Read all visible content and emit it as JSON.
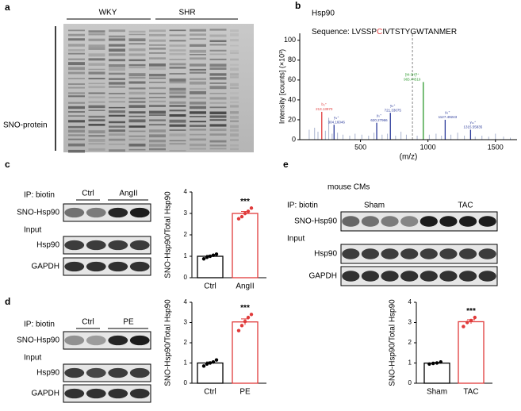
{
  "panel_a": {
    "letter": "a",
    "groups": [
      "WKY",
      "SHR"
    ],
    "row_label": "SNO-protein"
  },
  "panel_b": {
    "letter": "b",
    "sequence_prefix": "Sequence: LVSSP",
    "modified_residue": "C",
    "sequence_suffix": "IVTSTYGWTANMER"
  },
  "panel_c": {
    "letter": "c",
    "ip": "IP: biotin",
    "groups": [
      "Ctrl",
      "AngII"
    ],
    "ip_row": "SNO-Hsp90",
    "input": "Input",
    "input_rows": [
      "Hsp90",
      "GAPDH"
    ]
  },
  "panel_d": {
    "letter": "d",
    "ip": "IP: biotin",
    "groups": [
      "Ctrl",
      "PE"
    ],
    "ip_row": "SNO-Hsp90",
    "input": "Input",
    "input_rows": [
      "Hsp90",
      "GAPDH"
    ]
  },
  "panel_e": {
    "letter": "e",
    "title": "mouse CMs",
    "ip": "IP: biotin",
    "groups": [
      "Sham",
      "TAC"
    ],
    "ip_row": "SNO-Hsp90",
    "input": "Input",
    "input_rows": [
      "Hsp90",
      "GAPDH"
    ]
  },
  "chart_data": [
    {
      "type": "spectrum",
      "title": "Hsp90",
      "ylabel": "Intensity [counts] (×10³)",
      "xlabel": "(m/z)",
      "xlim": [
        50,
        1660
      ],
      "ylim": [
        0,
        107
      ],
      "xticks": [
        500,
        1000,
        1500
      ],
      "yticks": [
        0,
        20,
        40,
        60,
        80,
        100
      ],
      "peaks": [
        {
          "label": "b₃⁺",
          "mz": 213.1397,
          "mz_label": "213.13970",
          "intensity": 28,
          "color": "#e03a3a"
        },
        {
          "label": "y₃⁺",
          "mz": 304.16046,
          "mz_label": "304.16046",
          "intensity": 15,
          "color": "#2a3a9a"
        },
        {
          "label": "y₅⁺",
          "mz": 620.27966,
          "mz_label": "620.27966",
          "intensity": 17,
          "color": "#2a3a9a"
        },
        {
          "label": "y₆⁺",
          "mz": 721.33075,
          "mz_label": "721.33075",
          "intensity": 27,
          "color": "#2a3a9a"
        },
        {
          "label": "[M-3H]³⁺",
          "mz": 965.44519,
          "mz_label": "965.44519",
          "intensity": 58,
          "color": "#2e9a2e"
        },
        {
          "label": "y₉⁺",
          "mz": 1127.49243,
          "mz_label": "1127.49243",
          "intensity": 20,
          "color": "#2a3a9a"
        },
        {
          "label": "y₁₁⁺",
          "mz": 1315.55835,
          "mz_label": "1315.55835",
          "intensity": 10,
          "color": "#2a3a9a"
        }
      ],
      "precursor_line": {
        "mz": 885,
        "intensity": 107,
        "color": "#888888"
      },
      "background_peaks": {
        "color": "#a9b3cf",
        "mz": [
          120,
          160,
          185,
          240,
          265,
          290,
          330,
          370,
          420,
          460,
          510,
          560,
          600,
          660,
          700,
          760,
          800,
          840,
          920,
          1010,
          1060,
          1100,
          1170,
          1220,
          1270,
          1350,
          1400,
          1450,
          1500,
          1560,
          1610
        ],
        "intensity": [
          10,
          12,
          8,
          9,
          22,
          6,
          7,
          5,
          4,
          6,
          5,
          4,
          7,
          5,
          6,
          4,
          8,
          5,
          4,
          5,
          6,
          4,
          5,
          7,
          4,
          3,
          4,
          3,
          6,
          3,
          2
        ]
      }
    },
    {
      "type": "bar",
      "ylabel": "SNO-Hsp90/Total Hsp90",
      "categories": [
        "Ctrl",
        "AngII"
      ],
      "values": [
        1.0,
        3.0
      ],
      "errors": [
        0.04,
        0.09
      ],
      "points": [
        [
          0.88,
          0.95,
          1.0,
          1.05,
          1.1
        ],
        [
          2.75,
          2.85,
          3.0,
          3.1,
          3.25
        ]
      ],
      "colors": [
        "#000000",
        "#e03a3a"
      ],
      "ylim": [
        0,
        4
      ],
      "yticks": [
        0,
        1,
        2,
        3,
        4
      ],
      "annotation": "***"
    },
    {
      "type": "bar",
      "ylabel": "SNO-Hsp90/Total Hsp90",
      "categories": [
        "Ctrl",
        "PE"
      ],
      "values": [
        1.0,
        3.03
      ],
      "errors": [
        0.05,
        0.15
      ],
      "points": [
        [
          0.85,
          0.95,
          1.0,
          1.05,
          1.15
        ],
        [
          2.6,
          2.85,
          3.05,
          3.25,
          3.4
        ]
      ],
      "colors": [
        "#000000",
        "#e03a3a"
      ],
      "ylim": [
        0,
        4
      ],
      "yticks": [
        0,
        1,
        2,
        3,
        4
      ],
      "annotation": "***"
    },
    {
      "type": "bar",
      "ylabel": "SNO-Hsp90/Total Hsp90",
      "categories": [
        "Sham",
        "TAC"
      ],
      "values": [
        0.995,
        3.04
      ],
      "errors": [
        0.03,
        0.1
      ],
      "points": [
        [
          0.95,
          0.98,
          1.0,
          1.05
        ],
        [
          2.8,
          3.0,
          3.1,
          3.25
        ]
      ],
      "colors": [
        "#000000",
        "#e03a3a"
      ],
      "ylim": [
        0,
        4
      ],
      "yticks": [
        0,
        1,
        2,
        3,
        4
      ],
      "annotation": "***"
    }
  ]
}
